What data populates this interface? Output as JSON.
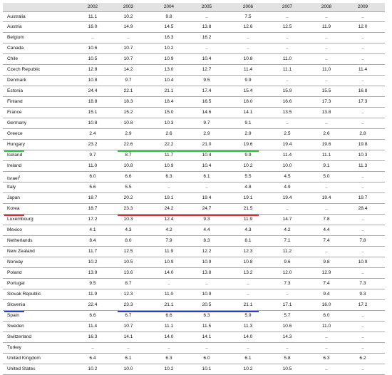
{
  "table": {
    "years": [
      "2002",
      "2003",
      "2004",
      "2005",
      "2006",
      "2007",
      "2008",
      "2009"
    ],
    "rows": [
      {
        "label": "Australia",
        "values": [
          "11.1",
          "10.2",
          "9.8",
          "..",
          "7.5",
          "..",
          "..",
          ".."
        ]
      },
      {
        "label": "Austria",
        "values": [
          "16.0",
          "14.9",
          "14.5",
          "13.8",
          "12.6",
          "12.5",
          "11.9",
          "12.0"
        ]
      },
      {
        "label": "Belgium",
        "values": [
          "..",
          "..",
          "16.3",
          "16.2",
          "..",
          "..",
          "..",
          ".."
        ]
      },
      {
        "label": "Canada",
        "values": [
          "10.6",
          "10.7",
          "10.2",
          "..",
          "..",
          "..",
          "..",
          ".."
        ]
      },
      {
        "label": "Chile",
        "values": [
          "10.5",
          "10.7",
          "10.9",
          "10.4",
          "10.8",
          "11.0",
          "..",
          ".."
        ]
      },
      {
        "label": "Czech Republic",
        "values": [
          "12.8",
          "14.2",
          "13.0",
          "12.7",
          "11.4",
          "11.1",
          "11.0",
          "11.4"
        ]
      },
      {
        "label": "Denmark",
        "values": [
          "10.8",
          "9.7",
          "10.4",
          "9.5",
          "9.9",
          "..",
          "..",
          ".."
        ]
      },
      {
        "label": "Estonia",
        "values": [
          "24.4",
          "22.1",
          "21.1",
          "17.4",
          "15.4",
          "15.9",
          "15.5",
          "16.8"
        ]
      },
      {
        "label": "Finland",
        "values": [
          "18.8",
          "18.3",
          "18.4",
          "16.5",
          "18.0",
          "16.6",
          "17.3",
          "17.3"
        ]
      },
      {
        "label": "France",
        "values": [
          "15.1",
          "15.2",
          "15.0",
          "14.6",
          "14.1",
          "13.5",
          "13.8",
          ".."
        ]
      },
      {
        "label": "Germany",
        "values": [
          "10.8",
          "10.8",
          "10.3",
          "9.7",
          "9.1",
          "..",
          "..",
          ".."
        ]
      },
      {
        "label": "Greece",
        "values": [
          "2.4",
          "2.9",
          "2.6",
          "2.9",
          "2.9",
          "2.5",
          "2.6",
          "2.8"
        ]
      },
      {
        "label": "Hungary",
        "values": [
          "23.2",
          "22.6",
          "22.2",
          "21.0",
          "19.6",
          "19.4",
          "19.6",
          "19.8"
        ]
      },
      {
        "label": "Iceland",
        "values": [
          "9.7",
          "8.7",
          "11.7",
          "10.4",
          "9.9",
          "11.4",
          "11.1",
          "10.3"
        ]
      },
      {
        "label": "Ireland",
        "values": [
          "11.0",
          "10.8",
          "10.9",
          "10.4",
          "10.2",
          "10.0",
          "9.1",
          "11.3"
        ]
      },
      {
        "label": "Israel",
        "sup": "1",
        "values": [
          "6.0",
          "6.6",
          "6.3",
          "6.1",
          "5.5",
          "4.5",
          "5.0",
          ".."
        ]
      },
      {
        "label": "Italy",
        "values": [
          "5.6",
          "5.5",
          "..",
          "..",
          "4.8",
          "4.9",
          "..",
          ".."
        ]
      },
      {
        "label": "Japan",
        "values": [
          "18.7",
          "20.2",
          "19.1",
          "19.4",
          "19.1",
          "19.4",
          "19.4",
          "19.7"
        ]
      },
      {
        "label": "Korea",
        "values": [
          "18.7",
          "23.3",
          "24.2",
          "24.7",
          "21.5",
          "..",
          "..",
          "28.4"
        ]
      },
      {
        "label": "Luxembourg",
        "values": [
          "17.2",
          "10.3",
          "12.4",
          "9.3",
          "11.9",
          "14.7",
          "7.8",
          ".."
        ]
      },
      {
        "label": "Mexico",
        "values": [
          "4.1",
          "4.3",
          "4.2",
          "4.4",
          "4.3",
          "4.2",
          "4.4",
          ".."
        ]
      },
      {
        "label": "Netherlands",
        "values": [
          "8.4",
          "8.0",
          "7.9",
          "8.3",
          "8.1",
          "7.1",
          "7.4",
          "7.8"
        ]
      },
      {
        "label": "New Zealand",
        "values": [
          "11.7",
          "12.5",
          "11.9",
          "12.2",
          "12.3",
          "11.2",
          "..",
          ".."
        ]
      },
      {
        "label": "Norway",
        "values": [
          "10.2",
          "10.5",
          "10.9",
          "10.9",
          "10.8",
          "9.6",
          "9.8",
          "10.9"
        ]
      },
      {
        "label": "Poland",
        "values": [
          "13.9",
          "13.6",
          "14.0",
          "13.8",
          "13.2",
          "12.0",
          "12.9",
          ".."
        ]
      },
      {
        "label": "Portugal",
        "values": [
          "9.5",
          "8.7",
          "..",
          "..",
          "..",
          "7.3",
          "7.4",
          "7.3"
        ]
      },
      {
        "label": "Slovak Republic",
        "values": [
          "11.9",
          "12.3",
          "11.0",
          "10.9",
          "..",
          "..",
          "9.4",
          "9.3"
        ]
      },
      {
        "label": "Slovenia",
        "values": [
          "22.4",
          "23.3",
          "21.1",
          "20.5",
          "21.1",
          "17.1",
          "16.0",
          "17.2"
        ]
      },
      {
        "label": "Spain",
        "values": [
          "6.6",
          "6.7",
          "6.6",
          "6.3",
          "5.9",
          "5.7",
          "6.0",
          ".."
        ]
      },
      {
        "label": "Sweden",
        "values": [
          "11.4",
          "10.7",
          "11.1",
          "11.5",
          "11.3",
          "10.6",
          "11.0",
          ".."
        ]
      },
      {
        "label": "Switzerland",
        "values": [
          "16.3",
          "14.1",
          "14.0",
          "14.1",
          "14.0",
          "14.3",
          "..",
          ".."
        ]
      },
      {
        "label": "Turkey",
        "values": [
          "..",
          "..",
          "..",
          "..",
          "..",
          "..",
          "..",
          ".."
        ]
      },
      {
        "label": "United Kingdom",
        "values": [
          "6.4",
          "6.1",
          "6.3",
          "6.0",
          "6.1",
          "5.8",
          "6.3",
          "6.2"
        ]
      },
      {
        "label": "United States",
        "values": [
          "10.2",
          "10.0",
          "10.2",
          "10.1",
          "10.2",
          "10.5",
          "..",
          ".."
        ]
      }
    ]
  },
  "highlights": [
    {
      "row": "Hungary",
      "color": "#34c83c",
      "label_underline": true,
      "value_underline": "2003-2006"
    },
    {
      "row": "Korea",
      "color": "#e12a2f",
      "label_underline": true,
      "value_underline": "2003-2006"
    },
    {
      "row": "Slovenia",
      "color": "#2a3fd1",
      "label_underline": true,
      "value_underline": "2003-2006"
    }
  ]
}
